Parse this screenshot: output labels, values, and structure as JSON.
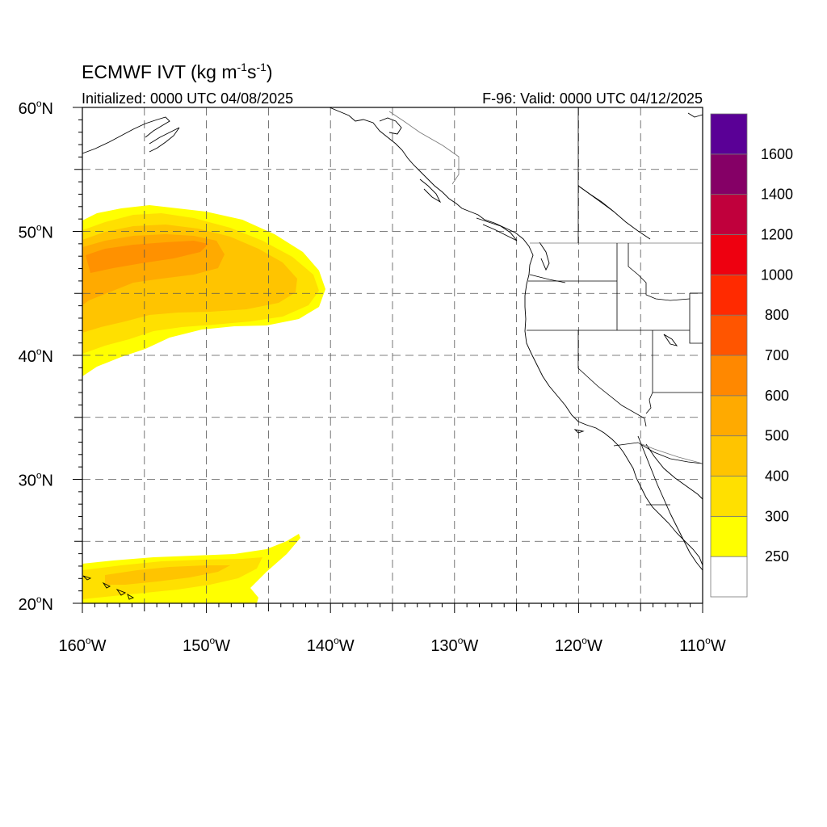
{
  "title": "ECMWF IVT (kg m",
  "title_unit_sup1": "-1",
  "title_unit_mid": "s",
  "title_unit_sup2": "-1",
  "title_end": ")",
  "initialized": "Initialized: 0000 UTC 04/08/2025",
  "valid": "F-96: Valid: 0000 UTC 04/12/2025",
  "lon_ticks": [
    {
      "value": -160,
      "label": "160",
      "hem": "W"
    },
    {
      "value": -150,
      "label": "150",
      "hem": "W"
    },
    {
      "value": -140,
      "label": "140",
      "hem": "W"
    },
    {
      "value": -130,
      "label": "130",
      "hem": "W"
    },
    {
      "value": -120,
      "label": "120",
      "hem": "W"
    },
    {
      "value": -110,
      "label": "110",
      "hem": "W"
    }
  ],
  "lat_ticks": [
    {
      "value": 60,
      "label": "60",
      "hem": "N"
    },
    {
      "value": 50,
      "label": "50",
      "hem": "N"
    },
    {
      "value": 40,
      "label": "40",
      "hem": "N"
    },
    {
      "value": 30,
      "label": "30",
      "hem": "N"
    },
    {
      "value": 20,
      "label": "20",
      "hem": "N"
    }
  ],
  "extent": {
    "lon": [
      -160,
      -110
    ],
    "lat": [
      20,
      60
    ]
  },
  "colorbar": {
    "levels": [
      "250",
      "300",
      "400",
      "500",
      "600",
      "700",
      "800",
      "1000",
      "1200",
      "1400",
      "1600"
    ],
    "colors": [
      "#ffffff",
      "#ffff00",
      "#ffe000",
      "#ffc400",
      "#ffaa00",
      "#ff8800",
      "#ff5500",
      "#ff2a00",
      "#ee0010",
      "#c0003c",
      "#850066",
      "#5a0096"
    ]
  },
  "chart_data": {
    "type": "heatmap",
    "variable": "IVT",
    "units": "kg m-1 s-1",
    "model": "ECMWF",
    "xlim": [
      -160,
      -110
    ],
    "ylim": [
      20,
      60
    ],
    "features": [
      {
        "region": "north-central Pacific plume",
        "lon_range": [
          -160,
          -141
        ],
        "lat_range": [
          38.5,
          52
        ],
        "max_level": "500-600"
      },
      {
        "region": "subtropical plume near Hawaii",
        "lon_range": [
          -160,
          -142.5
        ],
        "lat_range": [
          20,
          25.5
        ],
        "max_level": "300-400"
      }
    ]
  }
}
